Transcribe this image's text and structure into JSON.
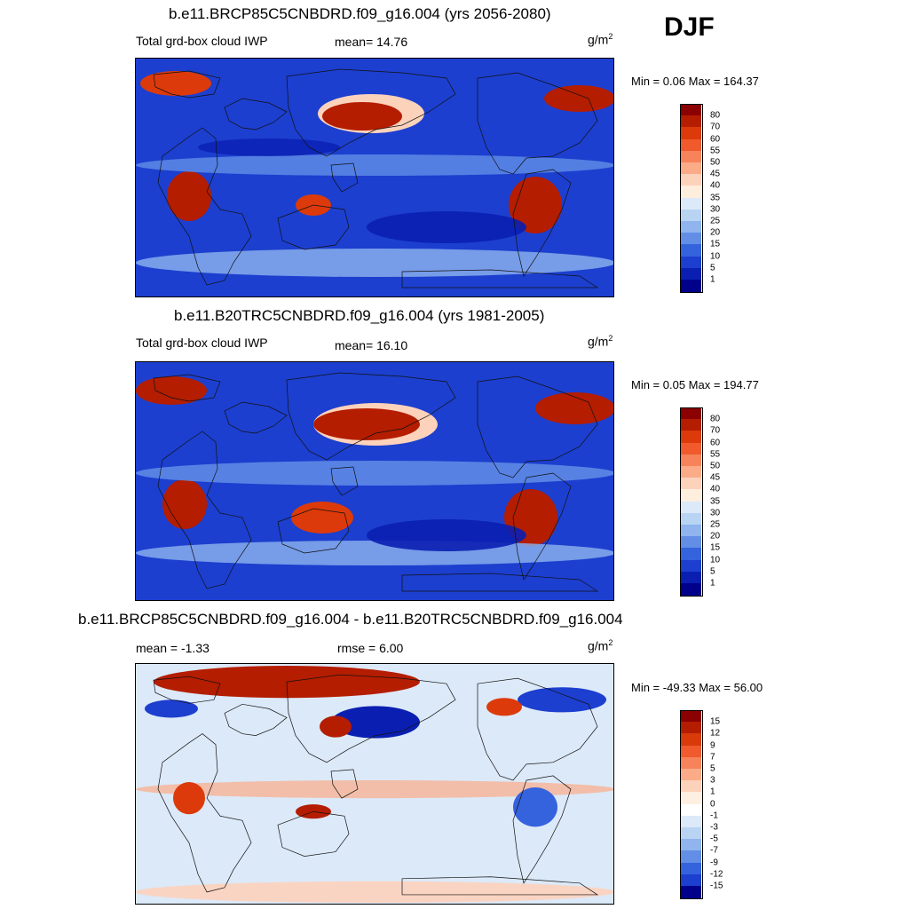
{
  "season": "DJF",
  "panels": [
    {
      "title": "b.e11.BRCP85C5CNBDRD.f09_g16.004 (yrs 2056-2080)",
      "field": "Total grd-box cloud IWP",
      "stat": "mean=  14.76",
      "units": "g/m",
      "units_sup": "2",
      "minmax": "Min =   0.06 Max = 164.37",
      "legend": [
        "80",
        "70",
        "60",
        "55",
        "50",
        "45",
        "40",
        "35",
        "30",
        "25",
        "20",
        "15",
        "10",
        "5",
        "1"
      ],
      "colors": [
        "#8b0000",
        "#b41d00",
        "#dc3a0a",
        "#f05a2c",
        "#f7835a",
        "#fbab88",
        "#fdd2bb",
        "#fdeede",
        "#dce9f8",
        "#b9d4f3",
        "#8fb4ee",
        "#628ee6",
        "#3563de",
        "#1c3fcf",
        "#0a1fb1",
        "#00008b"
      ]
    },
    {
      "title": "b.e11.B20TRC5CNBDRD.f09_g16.004 (yrs 1981-2005)",
      "field": "Total grd-box cloud IWP",
      "stat": "mean=  16.10",
      "units": "g/m",
      "units_sup": "2",
      "minmax": "Min =   0.05 Max = 194.77",
      "legend": [
        "80",
        "70",
        "60",
        "55",
        "50",
        "45",
        "40",
        "35",
        "30",
        "25",
        "20",
        "15",
        "10",
        "5",
        "1"
      ],
      "colors": [
        "#8b0000",
        "#b41d00",
        "#dc3a0a",
        "#f05a2c",
        "#f7835a",
        "#fbab88",
        "#fdd2bb",
        "#fdeede",
        "#dce9f8",
        "#b9d4f3",
        "#8fb4ee",
        "#628ee6",
        "#3563de",
        "#1c3fcf",
        "#0a1fb1",
        "#00008b"
      ]
    },
    {
      "title": "b.e11.BRCP85C5CNBDRD.f09_g16.004 - b.e11.B20TRC5CNBDRD.f09_g16.004",
      "stat_left": "mean =  -1.33",
      "stat": "rmse =   6.00",
      "units": "g/m",
      "units_sup": "2",
      "minmax": "Min = -49.33 Max =  56.00",
      "legend": [
        "15",
        "12",
        "9",
        "7",
        "5",
        "3",
        "1",
        "0",
        "-1",
        "-3",
        "-5",
        "-7",
        "-9",
        "-12",
        "-15"
      ],
      "colors": [
        "#8b0000",
        "#b41d00",
        "#d83a0a",
        "#f05a2c",
        "#f7835a",
        "#fbab88",
        "#fdd2bb",
        "#fdefe2",
        "#ffffff",
        "#dce9f8",
        "#b9d4f3",
        "#8fb4ee",
        "#628ee6",
        "#3563de",
        "#1c3fcf",
        "#00008b"
      ]
    }
  ]
}
